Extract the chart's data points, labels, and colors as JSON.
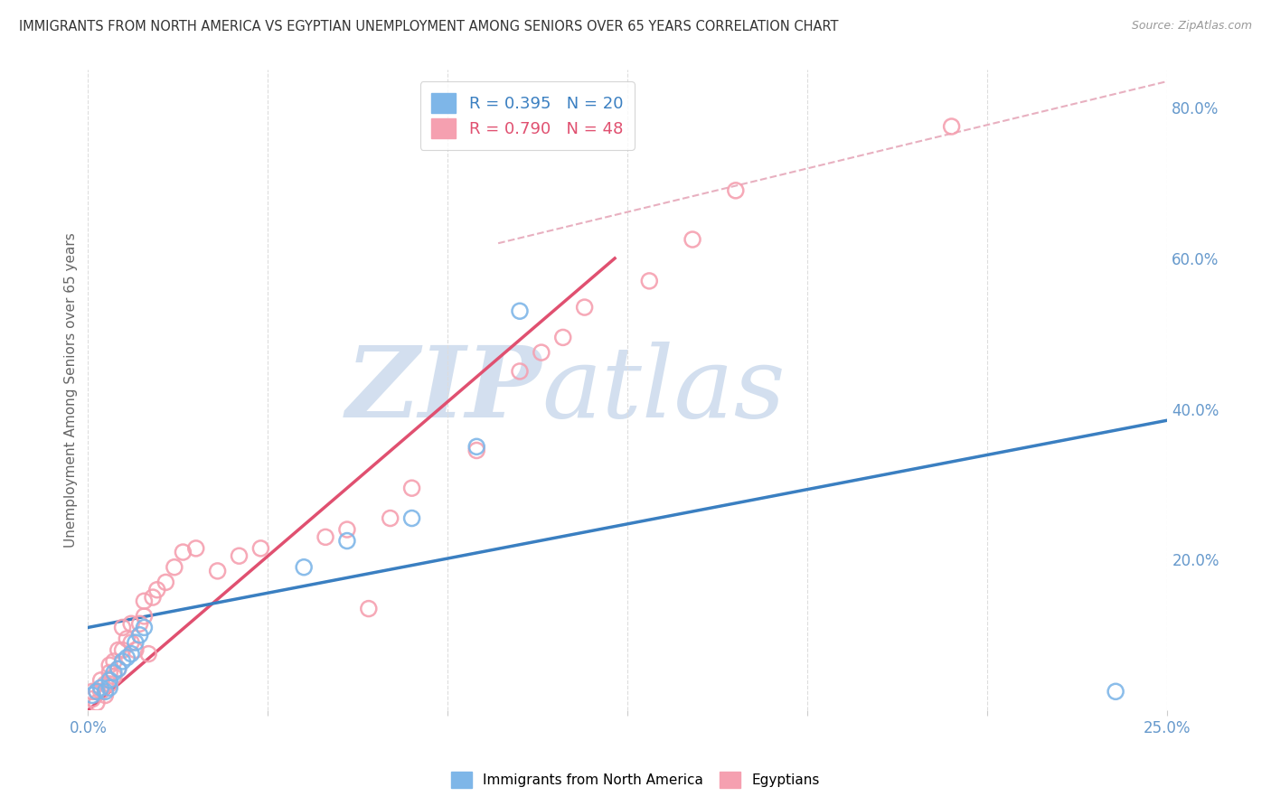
{
  "title": "IMMIGRANTS FROM NORTH AMERICA VS EGYPTIAN UNEMPLOYMENT AMONG SENIORS OVER 65 YEARS CORRELATION CHART",
  "source": "Source: ZipAtlas.com",
  "ylabel": "Unemployment Among Seniors over 65 years",
  "legend_blue_text": "R = 0.395   N = 20",
  "legend_pink_text": "R = 0.790   N = 48",
  "legend_label_blue": "Immigrants from North America",
  "legend_label_pink": "Egyptians",
  "watermark_zip": "ZIP",
  "watermark_atlas": "atlas",
  "right_yticks": [
    "80.0%",
    "60.0%",
    "40.0%",
    "20.0%"
  ],
  "right_ytick_values": [
    0.8,
    0.6,
    0.4,
    0.2
  ],
  "xlim": [
    0.0,
    0.25
  ],
  "ylim": [
    0.0,
    0.85
  ],
  "blue_scatter_x": [
    0.001,
    0.002,
    0.003,
    0.004,
    0.005,
    0.005,
    0.006,
    0.007,
    0.008,
    0.009,
    0.01,
    0.011,
    0.012,
    0.013,
    0.05,
    0.06,
    0.075,
    0.09,
    0.1,
    0.238
  ],
  "blue_scatter_y": [
    0.02,
    0.025,
    0.03,
    0.025,
    0.03,
    0.04,
    0.05,
    0.055,
    0.065,
    0.07,
    0.075,
    0.09,
    0.1,
    0.11,
    0.19,
    0.225,
    0.255,
    0.35,
    0.53,
    0.025
  ],
  "pink_scatter_x": [
    0.001,
    0.001,
    0.002,
    0.002,
    0.003,
    0.003,
    0.004,
    0.004,
    0.005,
    0.005,
    0.005,
    0.006,
    0.006,
    0.007,
    0.007,
    0.008,
    0.008,
    0.009,
    0.01,
    0.01,
    0.011,
    0.012,
    0.013,
    0.013,
    0.014,
    0.015,
    0.016,
    0.018,
    0.02,
    0.022,
    0.025,
    0.03,
    0.035,
    0.04,
    0.055,
    0.06,
    0.065,
    0.07,
    0.075,
    0.09,
    0.1,
    0.105,
    0.11,
    0.115,
    0.13,
    0.14,
    0.15,
    0.2
  ],
  "pink_scatter_y": [
    0.015,
    0.025,
    0.01,
    0.025,
    0.025,
    0.04,
    0.02,
    0.035,
    0.035,
    0.05,
    0.06,
    0.045,
    0.065,
    0.055,
    0.08,
    0.08,
    0.11,
    0.095,
    0.09,
    0.115,
    0.08,
    0.115,
    0.125,
    0.145,
    0.075,
    0.15,
    0.16,
    0.17,
    0.19,
    0.21,
    0.215,
    0.185,
    0.205,
    0.215,
    0.23,
    0.24,
    0.135,
    0.255,
    0.295,
    0.345,
    0.45,
    0.475,
    0.495,
    0.535,
    0.57,
    0.625,
    0.69,
    0.775
  ],
  "blue_line_x": [
    0.0,
    0.25
  ],
  "blue_line_y": [
    0.11,
    0.385
  ],
  "pink_line_x": [
    0.0,
    0.122
  ],
  "pink_line_y": [
    0.0,
    0.6
  ],
  "diagonal_line_x": [
    0.095,
    0.25
  ],
  "diagonal_line_y": [
    0.62,
    0.835
  ],
  "color_blue_scatter": "#7EB6E8",
  "color_blue_line": "#3A7FC1",
  "color_pink_scatter": "#F5A0B0",
  "color_pink_line": "#E05070",
  "color_diagonal": "#E8B0C0",
  "color_grid": "#DDDDDD",
  "color_title": "#333333",
  "color_watermark": "#D0E4F5",
  "color_right_axis": "#6699CC",
  "color_source": "#999999"
}
